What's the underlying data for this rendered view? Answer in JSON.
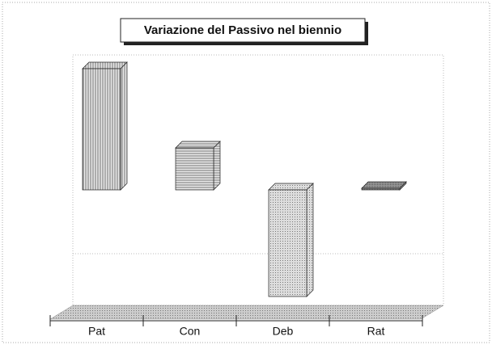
{
  "chart_data": {
    "type": "bar3d",
    "title": "Variazione del Passivo nel biennio",
    "categories": [
      "Pat",
      "Con",
      "Deb",
      "Rat"
    ],
    "values": [
      150,
      52,
      -132,
      2
    ],
    "ylim": [
      -145,
      167
    ]
  }
}
